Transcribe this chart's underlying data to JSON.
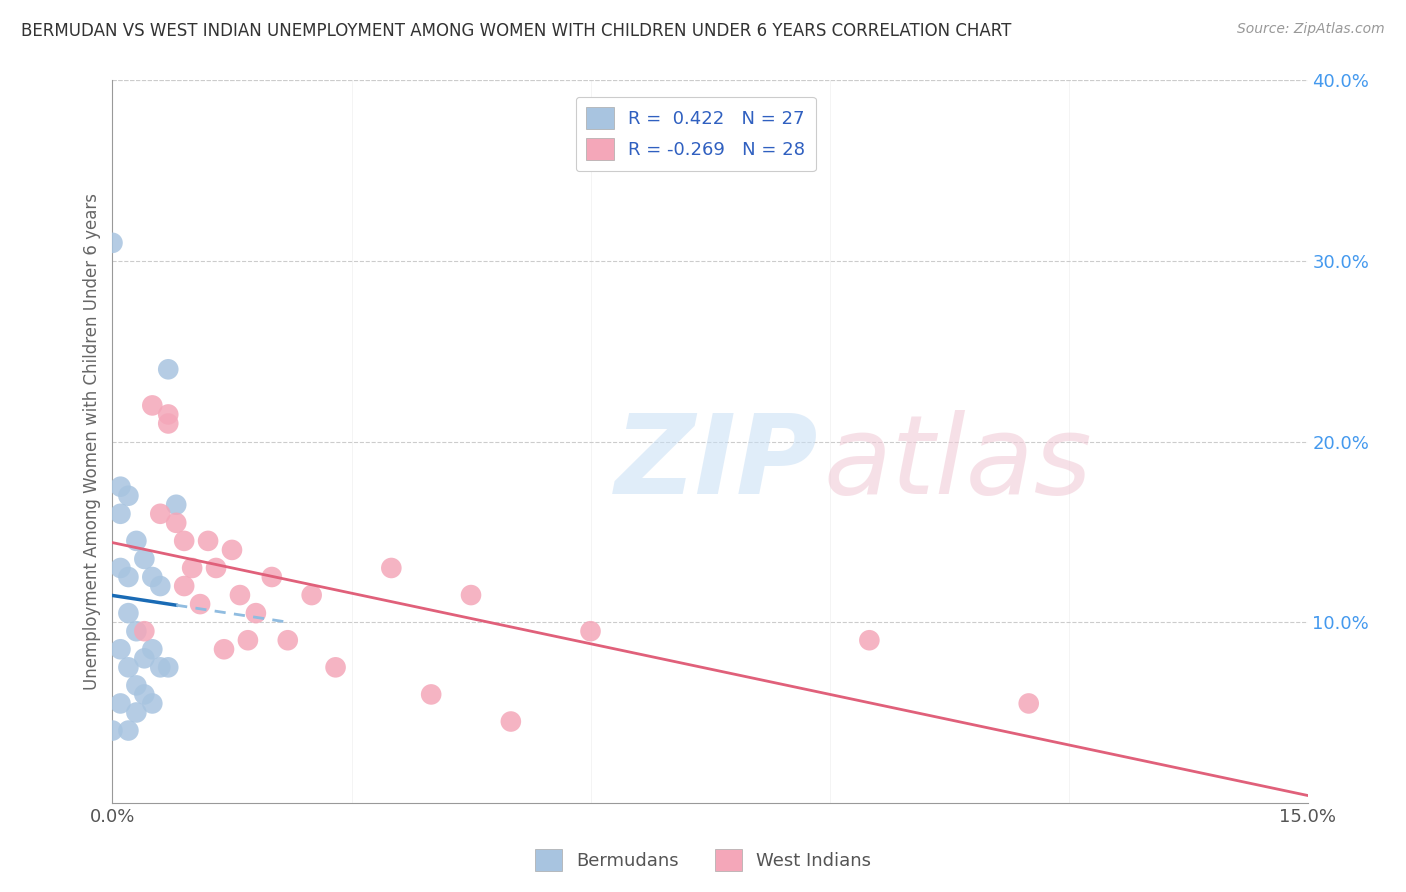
{
  "title": "BERMUDAN VS WEST INDIAN UNEMPLOYMENT AMONG WOMEN WITH CHILDREN UNDER 6 YEARS CORRELATION CHART",
  "source": "Source: ZipAtlas.com",
  "ylabel": "Unemployment Among Women with Children Under 6 years",
  "x_min": 0.0,
  "x_max": 0.15,
  "y_min": 0.0,
  "y_max": 0.4,
  "x_ticks": [
    0.0,
    0.03,
    0.06,
    0.09,
    0.12,
    0.15
  ],
  "y_ticks_right": [
    0.0,
    0.1,
    0.2,
    0.3,
    0.4
  ],
  "bermuda_color": "#a8c4e0",
  "west_indian_color": "#f4a7b9",
  "bermuda_line_color": "#1a6bb5",
  "west_indian_line_color": "#e0607a",
  "bermuda_dashed_color": "#90bce0",
  "R_bermuda": 0.422,
  "N_bermuda": 27,
  "R_west_indian": -0.269,
  "N_west_indian": 28,
  "legend_text_color": "#3060c0",
  "bermuda_x": [
    0.0,
    0.0,
    0.001,
    0.001,
    0.001,
    0.001,
    0.001,
    0.002,
    0.002,
    0.002,
    0.002,
    0.002,
    0.003,
    0.003,
    0.003,
    0.003,
    0.004,
    0.004,
    0.004,
    0.005,
    0.005,
    0.005,
    0.006,
    0.006,
    0.007,
    0.007,
    0.008
  ],
  "bermuda_y": [
    0.31,
    0.04,
    0.175,
    0.16,
    0.13,
    0.085,
    0.055,
    0.17,
    0.125,
    0.105,
    0.075,
    0.04,
    0.145,
    0.095,
    0.065,
    0.05,
    0.135,
    0.08,
    0.06,
    0.125,
    0.085,
    0.055,
    0.12,
    0.075,
    0.24,
    0.075,
    0.165
  ],
  "west_indian_x": [
    0.004,
    0.005,
    0.006,
    0.007,
    0.007,
    0.008,
    0.009,
    0.009,
    0.01,
    0.011,
    0.012,
    0.013,
    0.014,
    0.015,
    0.016,
    0.017,
    0.018,
    0.02,
    0.022,
    0.025,
    0.028,
    0.035,
    0.04,
    0.045,
    0.05,
    0.06,
    0.095,
    0.115
  ],
  "west_indian_y": [
    0.095,
    0.22,
    0.16,
    0.215,
    0.21,
    0.155,
    0.145,
    0.12,
    0.13,
    0.11,
    0.145,
    0.13,
    0.085,
    0.14,
    0.115,
    0.09,
    0.105,
    0.125,
    0.09,
    0.115,
    0.075,
    0.13,
    0.06,
    0.115,
    0.045,
    0.095,
    0.09,
    0.055
  ]
}
